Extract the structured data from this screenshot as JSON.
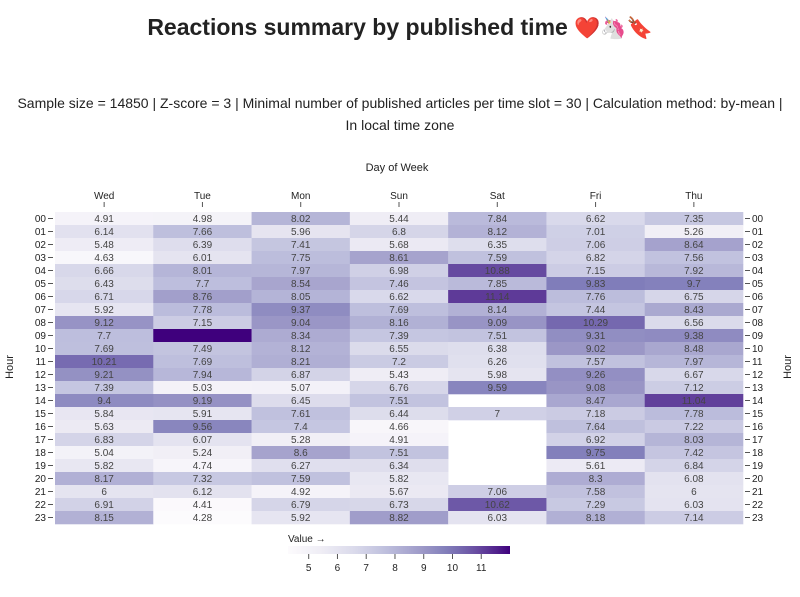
{
  "header": {
    "title": "Reactions summary by published time",
    "emojis": "❤️🦄🔖",
    "subtitle_line1": "Sample size = 14850 | Z-score = 3 | Minimal number of published articles per time slot = 30 | Calculation method: by-mean |",
    "subtitle_line2": "In local time zone"
  },
  "chart_data": {
    "type": "heatmap",
    "xlabel": "Day of Week",
    "ylabel": "Hour",
    "columns": [
      "Wed",
      "Tue",
      "Mon",
      "Sun",
      "Sat",
      "Fri",
      "Thu"
    ],
    "rows": [
      "00",
      "01",
      "02",
      "03",
      "04",
      "05",
      "06",
      "07",
      "08",
      "09",
      "10",
      "11",
      "12",
      "13",
      "14",
      "15",
      "16",
      "17",
      "18",
      "19",
      "20",
      "21",
      "22",
      "23"
    ],
    "values": [
      [
        4.91,
        4.98,
        8.02,
        5.44,
        7.84,
        6.62,
        7.35
      ],
      [
        6.14,
        7.66,
        5.96,
        6.8,
        8.12,
        7.01,
        5.26
      ],
      [
        5.48,
        6.39,
        7.41,
        5.68,
        6.35,
        7.06,
        8.64
      ],
      [
        4.63,
        6.01,
        7.75,
        8.61,
        7.59,
        6.82,
        7.56
      ],
      [
        6.66,
        8.01,
        7.97,
        6.98,
        10.88,
        7.15,
        7.92
      ],
      [
        6.43,
        7.7,
        8.54,
        7.46,
        7.85,
        9.83,
        9.7
      ],
      [
        6.71,
        8.76,
        8.05,
        6.62,
        11.14,
        7.76,
        6.75
      ],
      [
        5.92,
        7.78,
        9.37,
        7.69,
        8.14,
        7.44,
        8.43
      ],
      [
        9.12,
        7.15,
        9.04,
        8.16,
        9.09,
        10.29,
        6.56
      ],
      [
        7.7,
        12.0,
        8.34,
        7.39,
        7.51,
        9.31,
        9.38
      ],
      [
        7.69,
        7.49,
        8.12,
        6.55,
        6.38,
        9.02,
        8.48
      ],
      [
        10.21,
        7.69,
        8.21,
        7.2,
        6.26,
        7.57,
        7.97
      ],
      [
        9.21,
        7.94,
        6.87,
        5.43,
        5.98,
        9.26,
        6.67
      ],
      [
        7.39,
        5.03,
        5.07,
        6.76,
        9.59,
        9.08,
        7.12
      ],
      [
        9.4,
        9.19,
        6.45,
        7.51,
        null,
        8.47,
        11.04
      ],
      [
        5.84,
        5.91,
        7.61,
        6.44,
        7,
        7.18,
        7.78
      ],
      [
        5.63,
        9.56,
        7.4,
        4.66,
        null,
        7.64,
        7.22
      ],
      [
        6.83,
        6.07,
        5.28,
        4.91,
        null,
        6.92,
        8.03
      ],
      [
        5.04,
        5.24,
        8.6,
        7.51,
        null,
        9.75,
        7.42
      ],
      [
        5.82,
        4.74,
        6.27,
        6.34,
        null,
        5.61,
        6.84
      ],
      [
        8.17,
        7.32,
        7.59,
        5.82,
        null,
        8.3,
        6.08
      ],
      [
        6,
        6.12,
        4.92,
        5.67,
        7.06,
        7.58,
        6
      ],
      [
        6.91,
        4.41,
        6.79,
        6.73,
        10.62,
        7.29,
        6.03
      ],
      [
        8.15,
        4.28,
        5.92,
        8.82,
        6.03,
        8.18,
        7.14
      ]
    ],
    "labels_hidden": [
      [
        9,
        1
      ]
    ],
    "color_scale": {
      "name": "Purples",
      "domain": [
        4.28,
        12.0
      ],
      "low": "#fcfbfd",
      "high": "#3f007d"
    },
    "legend": {
      "label": "Value →",
      "ticks": [
        5,
        6,
        7,
        8,
        9,
        10,
        11
      ],
      "range": [
        4.28,
        12.0
      ],
      "placement": "bottom-left"
    },
    "grid": false
  }
}
